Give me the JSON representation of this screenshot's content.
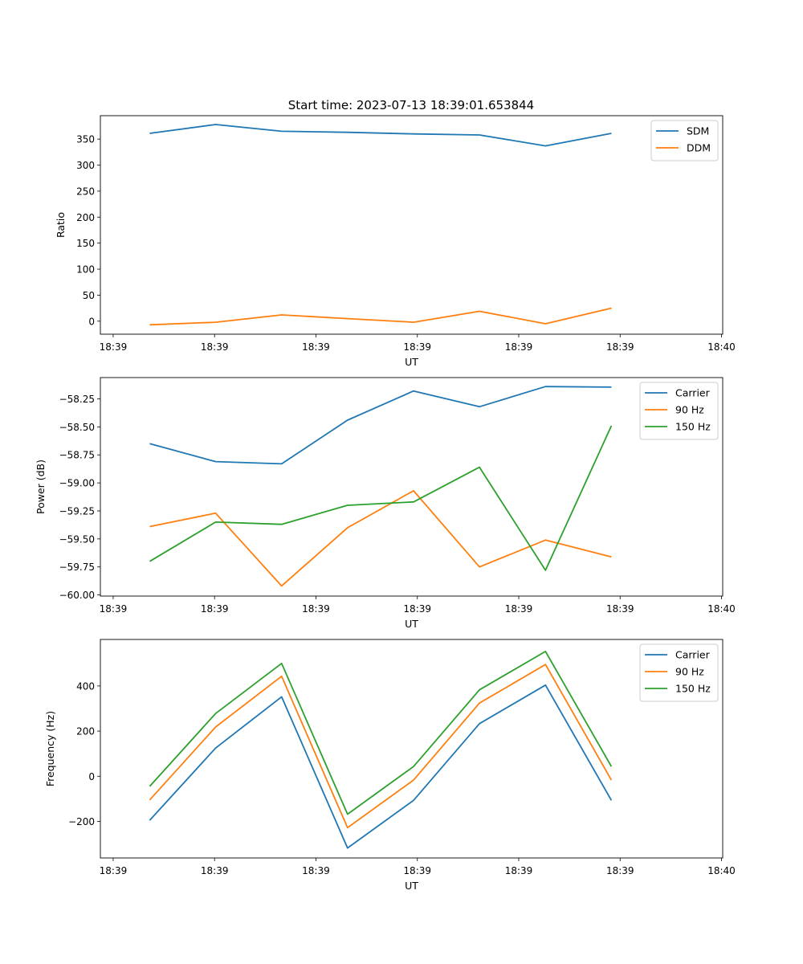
{
  "figure_title": "Start time: 2023-07-13 18:39:01.653844",
  "chart_data": [
    {
      "type": "line",
      "title": "Start time: 2023-07-13 18:39:01.653844",
      "xlabel": "UT",
      "ylabel": "Ratio",
      "x": [
        1,
        2,
        3,
        4,
        5,
        6,
        7,
        8
      ],
      "xlim": [
        0.253,
        9.687
      ],
      "x_ticks": [
        0.447,
        1.984,
        3.521,
        5.058,
        6.595,
        8.132,
        9.669
      ],
      "x_tick_labels": [
        "18:39",
        "18:39",
        "18:39",
        "18:39",
        "18:39",
        "18:39",
        "18:40"
      ],
      "ylim": [
        -25,
        395
      ],
      "y_ticks": [
        0,
        50,
        100,
        150,
        200,
        250,
        300,
        350
      ],
      "y_tick_labels": [
        "0",
        "50",
        "100",
        "150",
        "200",
        "250",
        "300",
        "350"
      ],
      "legend_position": "top-right",
      "series": [
        {
          "name": "SDM",
          "color": "#1f77b4",
          "values": [
            361,
            378,
            365,
            363,
            360,
            358,
            337,
            361
          ]
        },
        {
          "name": "DDM",
          "color": "#ff7f0e",
          "values": [
            -7,
            -2,
            12,
            5,
            -2,
            19,
            -5,
            25
          ]
        }
      ]
    },
    {
      "type": "line",
      "title": "",
      "xlabel": "UT",
      "ylabel": "Power (dB)",
      "x": [
        1,
        2,
        3,
        4,
        5,
        6,
        7,
        8
      ],
      "xlim": [
        0.253,
        9.687
      ],
      "x_ticks": [
        0.447,
        1.984,
        3.521,
        5.058,
        6.595,
        8.132,
        9.669
      ],
      "x_tick_labels": [
        "18:39",
        "18:39",
        "18:39",
        "18:39",
        "18:39",
        "18:39",
        "18:40"
      ],
      "ylim": [
        -60.01,
        -58.06
      ],
      "y_ticks": [
        -60.0,
        -59.75,
        -59.5,
        -59.25,
        -59.0,
        -58.75,
        -58.5,
        -58.25
      ],
      "y_tick_labels": [
        "−60.00",
        "−59.75",
        "−59.50",
        "−59.25",
        "−59.00",
        "−58.75",
        "−58.50",
        "−58.25"
      ],
      "legend_position": "top-right",
      "series": [
        {
          "name": "Carrier",
          "color": "#1f77b4",
          "values": [
            -58.65,
            -58.81,
            -58.83,
            -58.44,
            -58.18,
            -58.32,
            -58.14,
            -58.145
          ]
        },
        {
          "name": "90 Hz",
          "color": "#ff7f0e",
          "values": [
            -59.39,
            -59.27,
            -59.92,
            -59.4,
            -59.07,
            -59.75,
            -59.51,
            -59.66
          ]
        },
        {
          "name": "150 Hz",
          "color": "#2ca02c",
          "values": [
            -59.7,
            -59.35,
            -59.37,
            -59.2,
            -59.17,
            -58.86,
            -59.78,
            -58.49
          ]
        }
      ]
    },
    {
      "type": "line",
      "title": "",
      "xlabel": "UT",
      "ylabel": "Frequency (Hz)",
      "x": [
        1,
        2,
        3,
        4,
        5,
        6,
        7,
        8
      ],
      "xlim": [
        0.253,
        9.687
      ],
      "x_ticks": [
        0.447,
        1.984,
        3.521,
        5.058,
        6.595,
        8.132,
        9.669
      ],
      "x_tick_labels": [
        "18:39",
        "18:39",
        "18:39",
        "18:39",
        "18:39",
        "18:39",
        "18:40"
      ],
      "ylim": [
        -362,
        606
      ],
      "y_ticks": [
        -200,
        0,
        200,
        400
      ],
      "y_tick_labels": [
        "−200",
        "0",
        "200",
        "400"
      ],
      "legend_position": "top-right",
      "series": [
        {
          "name": "Carrier",
          "color": "#1f77b4",
          "values": [
            -195,
            125,
            352,
            -318,
            -107,
            233,
            404,
            -107
          ]
        },
        {
          "name": "90 Hz",
          "color": "#ff7f0e",
          "values": [
            -105,
            218,
            443,
            -228,
            -17,
            324,
            495,
            -17
          ]
        },
        {
          "name": "150 Hz",
          "color": "#2ca02c",
          "values": [
            -45,
            278,
            500,
            -168,
            43,
            383,
            553,
            43
          ]
        }
      ]
    }
  ]
}
